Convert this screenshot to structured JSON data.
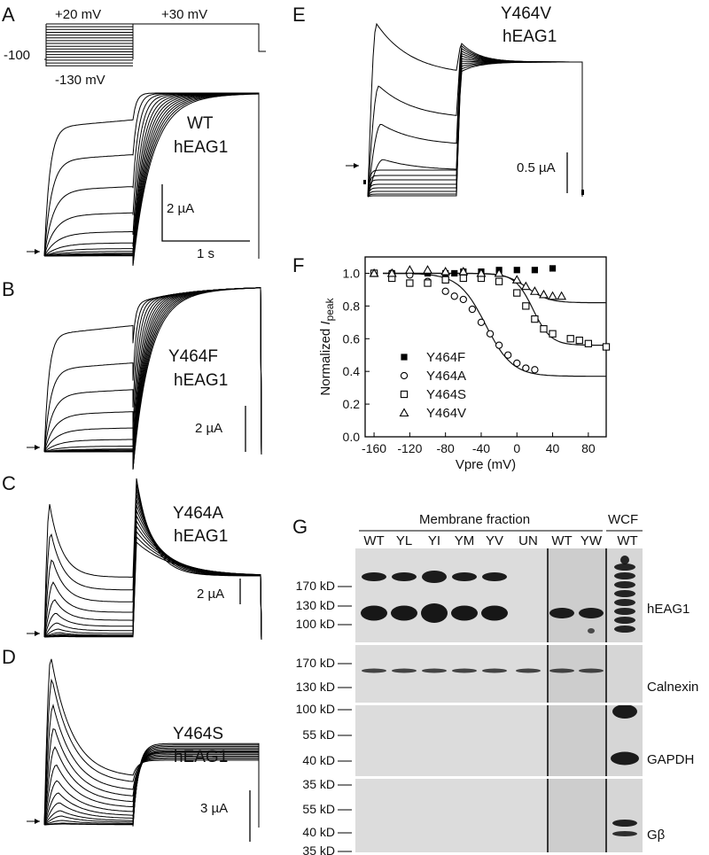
{
  "figure": {
    "panels": {
      "A": {
        "letter": "A",
        "protocol": {
          "top_left": "+20 mV",
          "top_right": "+30 mV",
          "holding": "-100",
          "bottom": "-130 mV"
        },
        "title_line1": "WT",
        "title_line2": "hEAG1",
        "scale_current": "2 µA",
        "scale_time": "1 s"
      },
      "B": {
        "letter": "B",
        "title_line1": "Y464F",
        "title_line2": "hEAG1",
        "scale_current": "2 µA"
      },
      "C": {
        "letter": "C",
        "title_line1": "Y464A",
        "title_line2": "hEAG1",
        "scale_current": "2 µA"
      },
      "D": {
        "letter": "D",
        "title_line1": "Y464S",
        "title_line2": "hEAG1",
        "scale_current": "3 µA"
      },
      "E": {
        "letter": "E",
        "title_line1": "Y464V",
        "title_line2": "hEAG1",
        "scale_current": "0.5 µA"
      },
      "F": {
        "letter": "F"
      },
      "G": {
        "letter": "G"
      }
    },
    "blot": {
      "header_membrane": "Membrane fraction",
      "header_wcf": "WCF",
      "lanes": [
        "WT",
        "YL",
        "YI",
        "YM",
        "YV",
        "UN",
        "WT",
        "YW",
        "WT"
      ],
      "strips": [
        {
          "label": "hEAG1",
          "markers": [
            "170 kD",
            "130 kD",
            "100 kD"
          ]
        },
        {
          "label": "Calnexin",
          "markers": [
            "170 kD",
            "130 kD",
            "100 kD"
          ]
        },
        {
          "label": "GAPDH",
          "markers": [
            "55 kD",
            "40 kD",
            "35 kD"
          ]
        },
        {
          "label": "Gβ",
          "markers": [
            "55 kD",
            "40 kD",
            "35 kD"
          ]
        }
      ]
    }
  },
  "chart_data": {
    "type": "scatter",
    "panel": "F",
    "xlabel": "Vpre (mV)",
    "ylabel_main": "Normalized ",
    "ylabel_italic": "I",
    "ylabel_sub": "peak",
    "xlim": [
      -170,
      100
    ],
    "ylim": [
      0.0,
      1.1
    ],
    "xticks": [
      -160,
      -120,
      -80,
      -40,
      0,
      40,
      80
    ],
    "yticks": [
      0.0,
      0.2,
      0.4,
      0.6,
      0.8,
      1.0
    ],
    "legend_position": "lower-left",
    "series": [
      {
        "name": "Y464F",
        "marker": "filled-square",
        "x": [
          -160,
          -140,
          -120,
          -100,
          -80,
          -70,
          -60,
          -40,
          -20,
          0,
          20,
          40
        ],
        "y": [
          1.0,
          1.0,
          1.0,
          1.0,
          1.0,
          1.0,
          1.01,
          1.01,
          1.02,
          1.02,
          1.02,
          1.03
        ]
      },
      {
        "name": "Y464A",
        "marker": "open-circle",
        "x": [
          -160,
          -140,
          -120,
          -100,
          -80,
          -70,
          -60,
          -50,
          -40,
          -30,
          -20,
          -10,
          0,
          10,
          20
        ],
        "y": [
          1.0,
          1.0,
          0.99,
          0.95,
          0.89,
          0.86,
          0.84,
          0.78,
          0.7,
          0.63,
          0.56,
          0.5,
          0.45,
          0.42,
          0.41
        ]
      },
      {
        "name": "Y464S",
        "marker": "open-square",
        "x": [
          -160,
          -140,
          -120,
          -100,
          -80,
          -60,
          -40,
          -20,
          0,
          10,
          20,
          30,
          40,
          60,
          70,
          80,
          100
        ],
        "y": [
          1.0,
          0.97,
          0.94,
          0.94,
          0.96,
          0.97,
          0.97,
          0.95,
          0.88,
          0.8,
          0.72,
          0.66,
          0.63,
          0.6,
          0.59,
          0.57,
          0.55
        ]
      },
      {
        "name": "Y464V",
        "marker": "open-triangle",
        "x": [
          -160,
          -140,
          -120,
          -100,
          -80,
          -60,
          -40,
          -20,
          0,
          10,
          20,
          30,
          40,
          50
        ],
        "y": [
          1.0,
          1.0,
          1.02,
          1.02,
          1.01,
          1.01,
          1.0,
          1.0,
          0.96,
          0.92,
          0.89,
          0.87,
          0.86,
          0.86
        ]
      }
    ],
    "fits": [
      {
        "v_half": -35,
        "k": 15,
        "min": 0.37
      },
      {
        "v_half": 18,
        "k": 10,
        "min": 0.56
      },
      {
        "v_half": 12,
        "k": 12,
        "min": 0.82
      }
    ]
  }
}
